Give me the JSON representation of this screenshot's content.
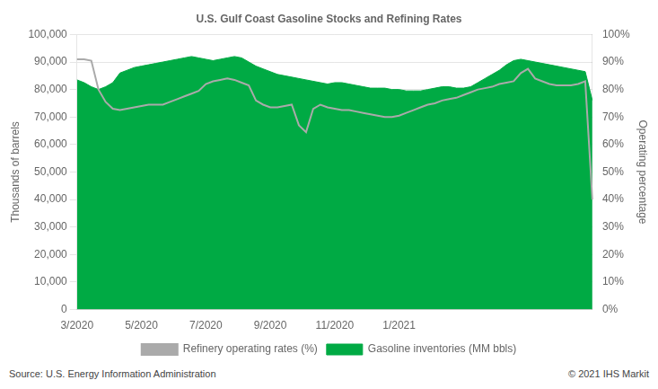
{
  "chart_data": {
    "type": "line",
    "title": "U.S. Gulf Coast Gasoline Stocks and Refining Rates",
    "ylabel": "Thousands of barrels",
    "y2label": "Operating percentage",
    "annotations": [
      "Source: U.S. Energy Information Administration",
      "© 2021 IHS Markit"
    ],
    "categories": [
      "3/2020",
      null,
      null,
      null,
      null,
      null,
      null,
      null,
      null,
      "5/2020",
      null,
      null,
      null,
      null,
      null,
      null,
      null,
      null,
      "7/2020",
      null,
      null,
      null,
      null,
      null,
      null,
      null,
      null,
      "9/2020",
      null,
      null,
      null,
      null,
      null,
      null,
      null,
      null,
      "11/2020",
      null,
      null,
      null,
      null,
      null,
      null,
      null,
      null,
      "1/2021",
      null,
      null,
      null,
      null,
      null,
      null,
      null,
      null,
      null,
      null,
      null,
      null,
      null,
      null,
      null,
      null,
      null,
      null,
      null,
      null,
      null,
      null,
      null,
      null,
      null,
      null,
      null
    ],
    "series": [
      {
        "name": "Gasoline inventories (MM bbls)",
        "type": "area",
        "color": "#00aa44",
        "values": [
          83500,
          82500,
          81000,
          80000,
          81000,
          82500,
          86000,
          87000,
          88000,
          88500,
          89000,
          89500,
          90000,
          90500,
          91000,
          91500,
          92000,
          91500,
          91000,
          90500,
          91000,
          91500,
          92000,
          91500,
          90000,
          88500,
          87500,
          86500,
          85500,
          85000,
          84500,
          84000,
          83500,
          83000,
          82500,
          82000,
          82500,
          82500,
          82000,
          81500,
          81000,
          80500,
          80500,
          80500,
          80000,
          80000,
          79500,
          79500,
          79500,
          80000,
          80500,
          81000,
          81000,
          80500,
          80500,
          81000,
          82500,
          84000,
          85500,
          87000,
          89000,
          90500,
          91000,
          90500,
          90000,
          89500,
          89000,
          88500,
          88000,
          87500,
          87000,
          86500,
          76000
        ]
      },
      {
        "name": "Refinery operating rates (%)",
        "type": "line",
        "color": "#aaaaaa",
        "axis": "y2",
        "values": [
          0.91,
          0.91,
          0.905,
          0.8,
          0.755,
          0.73,
          0.725,
          0.73,
          0.735,
          0.74,
          0.745,
          0.745,
          0.745,
          0.755,
          0.765,
          0.775,
          0.785,
          0.795,
          0.82,
          0.83,
          0.835,
          0.84,
          0.835,
          0.825,
          0.815,
          0.76,
          0.745,
          0.735,
          0.735,
          0.74,
          0.745,
          0.67,
          0.645,
          0.73,
          0.745,
          0.735,
          0.73,
          0.725,
          0.725,
          0.72,
          0.715,
          0.71,
          0.705,
          0.7,
          0.7,
          0.705,
          0.715,
          0.725,
          0.735,
          0.745,
          0.75,
          0.76,
          0.765,
          0.77,
          0.78,
          0.79,
          0.8,
          0.805,
          0.81,
          0.82,
          0.825,
          0.83,
          0.86,
          0.875,
          0.84,
          0.83,
          0.82,
          0.815,
          0.815,
          0.815,
          0.82,
          0.83,
          0.4
        ]
      }
    ],
    "ylim": [
      0,
      100000
    ],
    "yticks": [
      0,
      {
        "value": 10000,
        "label": "10,000"
      },
      {
        "value": 20000,
        "label": "20,000"
      },
      {
        "value": 30000,
        "label": "30,000"
      },
      {
        "value": 40000,
        "label": "40,000"
      },
      {
        "value": 50000,
        "label": "50,000"
      },
      {
        "value": 60000,
        "label": "60,000"
      },
      {
        "value": 70000,
        "label": "70,000"
      },
      {
        "value": 80000,
        "label": "80,000"
      },
      {
        "value": 90000,
        "label": "90,000"
      },
      {
        "value": 100000,
        "label": "100,000"
      }
    ],
    "y2lim": [
      0,
      1.0
    ],
    "y2ticks": [
      {
        "value": 0.0,
        "label": "0%"
      },
      {
        "value": 0.1,
        "label": "10%"
      },
      {
        "value": 0.2,
        "label": "20%"
      },
      {
        "value": 0.3,
        "label": "30%"
      },
      {
        "value": 0.4,
        "label": "40%"
      },
      {
        "value": 0.5,
        "label": "50%"
      },
      {
        "value": 0.6,
        "label": "60%"
      },
      {
        "value": 0.7,
        "label": "70%"
      },
      {
        "value": 0.8,
        "label": "80%"
      },
      {
        "value": 0.9,
        "label": "90%"
      },
      {
        "value": 1.0,
        "label": "100%"
      }
    ],
    "grid": "y",
    "legend": "bottom"
  }
}
